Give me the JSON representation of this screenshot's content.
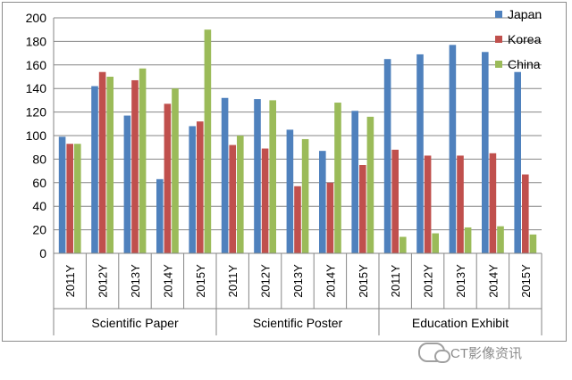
{
  "chart_data": {
    "type": "bar",
    "title": "",
    "xlabel": "",
    "ylabel": "",
    "ylim": [
      0,
      200
    ],
    "yticks": [
      "0",
      "20",
      "40",
      "60",
      "80",
      "100",
      "120",
      "140",
      "160",
      "180",
      "200"
    ],
    "grid": true,
    "legend_position": "top-right",
    "groups": [
      {
        "label": "Scientific Paper",
        "categories": [
          "2011Y",
          "2012Y",
          "2013Y",
          "2014Y",
          "2015Y"
        ]
      },
      {
        "label": "Scientific Poster",
        "categories": [
          "2011Y",
          "2012Y",
          "2013Y",
          "2014Y",
          "2015Y"
        ]
      },
      {
        "label": "Education Exhibit",
        "categories": [
          "2011Y",
          "2012Y",
          "2013Y",
          "2014Y",
          "2015Y"
        ]
      }
    ],
    "series": [
      {
        "name": "Japan",
        "color": "#4f81bd",
        "values": [
          99,
          142,
          117,
          63,
          108,
          132,
          131,
          105,
          87,
          121,
          165,
          169,
          177,
          171,
          154
        ]
      },
      {
        "name": "Korea",
        "color": "#c0504d",
        "values": [
          93,
          154,
          147,
          127,
          112,
          92,
          89,
          57,
          60,
          75,
          88,
          83,
          83,
          85,
          67
        ]
      },
      {
        "name": "China",
        "color": "#9bbb59",
        "values": [
          93,
          150,
          157,
          140,
          190,
          100,
          130,
          97,
          128,
          116,
          14,
          17,
          22,
          23,
          16
        ]
      }
    ]
  },
  "watermark": {
    "text": "CT影像资讯",
    "icon": "wechat-icon"
  }
}
